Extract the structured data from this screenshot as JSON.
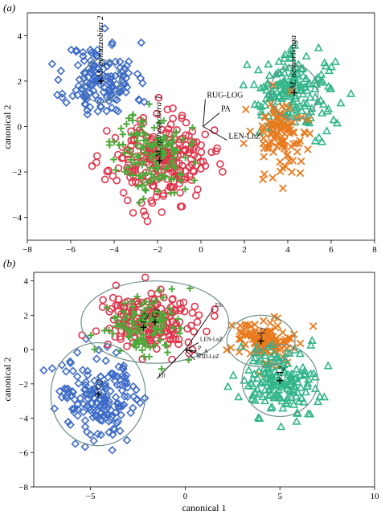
{
  "figure": {
    "axis_label_y": "canonical 2",
    "axis_label_x": "canonical 1"
  },
  "chart_data": [
    {
      "panel_label": "(a)",
      "type": "scatter",
      "xlabel": "",
      "ylabel": "canonical 2",
      "xlim": [
        -8,
        8
      ],
      "ylim": [
        -5,
        5
      ],
      "x_ticks": [
        -8,
        -6,
        -4,
        -2,
        0,
        2,
        4,
        6,
        8
      ],
      "y_ticks": [
        -4,
        -2,
        0,
        2,
        4
      ],
      "x_tick_labels": [
        "−8",
        "−6",
        "−4",
        "−2",
        "0",
        "2",
        "4",
        "6",
        "8"
      ],
      "y_tick_labels": [
        "−4",
        "−2",
        "0",
        "2",
        "4"
      ],
      "series": [
        {
          "label": "M. gonazzobira 2",
          "marker": "diamond",
          "color": "#3d6bc7",
          "center": [
            -4.6,
            2.0
          ],
          "spread": [
            0.8,
            0.85
          ],
          "n": 140,
          "seed": 11,
          "ellipse": {
            "rx": 0.85,
            "ry": 0.95,
            "angle": 0
          }
        },
        {
          "label": "M. gonazzobira 1",
          "marker": "circle",
          "color": "#e0344b",
          "center": [
            -1.9,
            -1.5
          ],
          "spread": [
            1.15,
            0.9
          ],
          "n": 240,
          "seed": 23,
          "ellipse": null
        },
        {
          "label": "",
          "marker": "plus",
          "color": "#4daa3a",
          "center": [
            -2.2,
            -1.2
          ],
          "spread": [
            0.85,
            0.9
          ],
          "n": 130,
          "seed": 37,
          "ellipse": null
        },
        {
          "label": "M. nemorivaga",
          "marker": "triangle",
          "color": "#33b58a",
          "center": [
            4.3,
            1.5
          ],
          "spread": [
            1.0,
            0.85
          ],
          "n": 170,
          "seed": 41,
          "ellipse": {
            "rx": 1.1,
            "ry": 1.2,
            "angle": 0
          }
        },
        {
          "label": "",
          "marker": "x",
          "color": "#e97b1f",
          "center": [
            3.7,
            -0.3
          ],
          "spread": [
            0.65,
            0.85
          ],
          "n": 110,
          "seed": 53,
          "ellipse": null
        }
      ],
      "vectors": [
        {
          "label": "RUG-LOG",
          "end": [
            0.2,
            1.2
          ]
        },
        {
          "label": "PA",
          "end": [
            0.85,
            0.6
          ]
        },
        {
          "label": "LEN-LnZ",
          "end": [
            1.2,
            -0.6
          ]
        }
      ],
      "vector_origin": [
        0.1,
        0.0
      ]
    },
    {
      "panel_label": "(b)",
      "type": "scatter",
      "xlabel": "canonical 1",
      "ylabel": "canonical 2",
      "xlim": [
        -8,
        10
      ],
      "ylim": [
        -8,
        4.5
      ],
      "x_ticks": [
        -5,
        0,
        5,
        10
      ],
      "y_ticks": [
        -8,
        -6,
        -4,
        -2,
        0,
        2,
        4
      ],
      "x_tick_labels": [
        "−5",
        "0",
        "5",
        "10"
      ],
      "y_tick_labels": [
        "−8",
        "−6",
        "−4",
        "−2",
        "0",
        "2",
        "4"
      ],
      "series": [
        {
          "label": "G3",
          "marker": "diamond",
          "color": "#3d6bc7",
          "center": [
            -4.6,
            -2.6
          ],
          "spread": [
            1.1,
            1.3
          ],
          "n": 170,
          "seed": 61,
          "ellipse": {
            "rx": 2.5,
            "ry": 3.0,
            "angle": 0
          }
        },
        {
          "label": "G1",
          "marker": "circle",
          "color": "#e0344b",
          "center": [
            -1.6,
            1.6
          ],
          "spread": [
            1.3,
            0.85
          ],
          "n": 190,
          "seed": 73,
          "ellipse": {
            "rx": 3.9,
            "ry": 2.4,
            "angle": 0
          }
        },
        {
          "label": "G2",
          "marker": "plus",
          "color": "#4daa3a",
          "center": [
            -2.2,
            1.3
          ],
          "spread": [
            1.0,
            0.9
          ],
          "n": 110,
          "seed": 83,
          "ellipse": null
        },
        {
          "label": "A1",
          "marker": "x",
          "color": "#e97b1f",
          "center": [
            4.0,
            0.5
          ],
          "spread": [
            0.9,
            0.65
          ],
          "n": 130,
          "seed": 97,
          "ellipse": {
            "rx": 1.8,
            "ry": 1.5,
            "angle": 0
          }
        },
        {
          "label": "A2",
          "marker": "triangle",
          "color": "#33b58a",
          "center": [
            5.0,
            -1.8
          ],
          "spread": [
            1.0,
            1.0
          ],
          "n": 160,
          "seed": 101,
          "ellipse": {
            "rx": 2.0,
            "ry": 2.1,
            "angle": 0
          }
        }
      ],
      "vectors": [
        {
          "label": "Elo",
          "end": [
            1.5,
            2.4
          ]
        },
        {
          "label": "LEN-LnZ",
          "end": [
            0.7,
            0.4
          ]
        },
        {
          "label": "P",
          "end": [
            0.6,
            -0.1
          ]
        },
        {
          "label": "A",
          "end": [
            0.9,
            -0.3
          ]
        },
        {
          "label": "WID-LnZ",
          "end": [
            0.5,
            -0.6
          ]
        },
        {
          "label": "Ell",
          "end": [
            -1.5,
            -1.7
          ]
        }
      ],
      "vector_origin": [
        0.0,
        0.0
      ]
    }
  ]
}
